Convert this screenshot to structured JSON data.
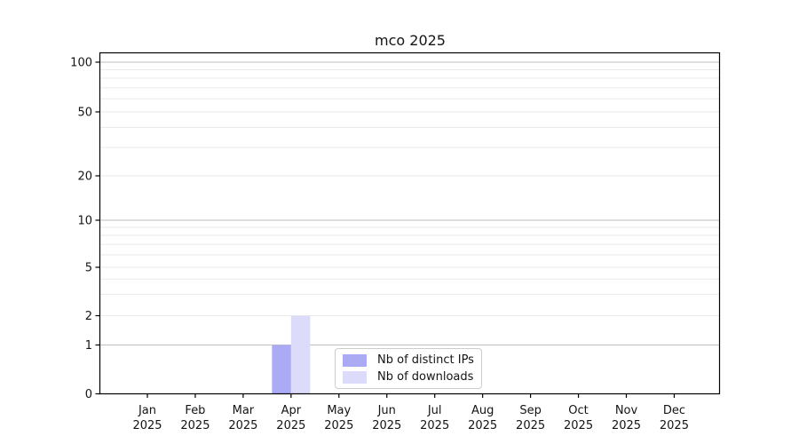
{
  "figure": {
    "title": "mco 2025"
  },
  "chart_data": {
    "type": "bar",
    "title": "mco 2025",
    "categories": [
      "Jan",
      "Feb",
      "Mar",
      "Apr",
      "May",
      "Jun",
      "Jul",
      "Aug",
      "Sep",
      "Oct",
      "Nov",
      "Dec"
    ],
    "category_year": "2025",
    "series": [
      {
        "name": "Nb of distinct IPs",
        "color": "#aaaaf5",
        "values": [
          0,
          0,
          0,
          1,
          0,
          0,
          0,
          0,
          0,
          0,
          0,
          0
        ]
      },
      {
        "name": "Nb of downloads",
        "color": "#dcdcfa",
        "values": [
          0,
          0,
          0,
          2,
          0,
          0,
          0,
          0,
          0,
          0,
          0,
          0
        ]
      }
    ],
    "yticks": [
      0,
      1,
      2,
      5,
      10,
      20,
      50,
      100
    ],
    "minor_yticks": [
      3,
      4,
      6,
      7,
      8,
      9,
      30,
      40,
      60,
      70,
      80,
      90
    ],
    "major_grid_values": [
      1,
      10,
      100
    ],
    "ylim": [
      0,
      115
    ],
    "scale": "symlog",
    "xlabel": "",
    "ylabel": "",
    "grid": "horizontal",
    "legend": {
      "position": "lower center",
      "entries": [
        "Nb of distinct IPs",
        "Nb of downloads"
      ]
    }
  },
  "colors": {
    "grid_major": "#bdbdbd",
    "grid_minor": "#eaeaea",
    "spine": "#000000",
    "tick": "#000000",
    "text": "#141414",
    "legend_border": "#cccccc",
    "background": "#ffffff"
  }
}
